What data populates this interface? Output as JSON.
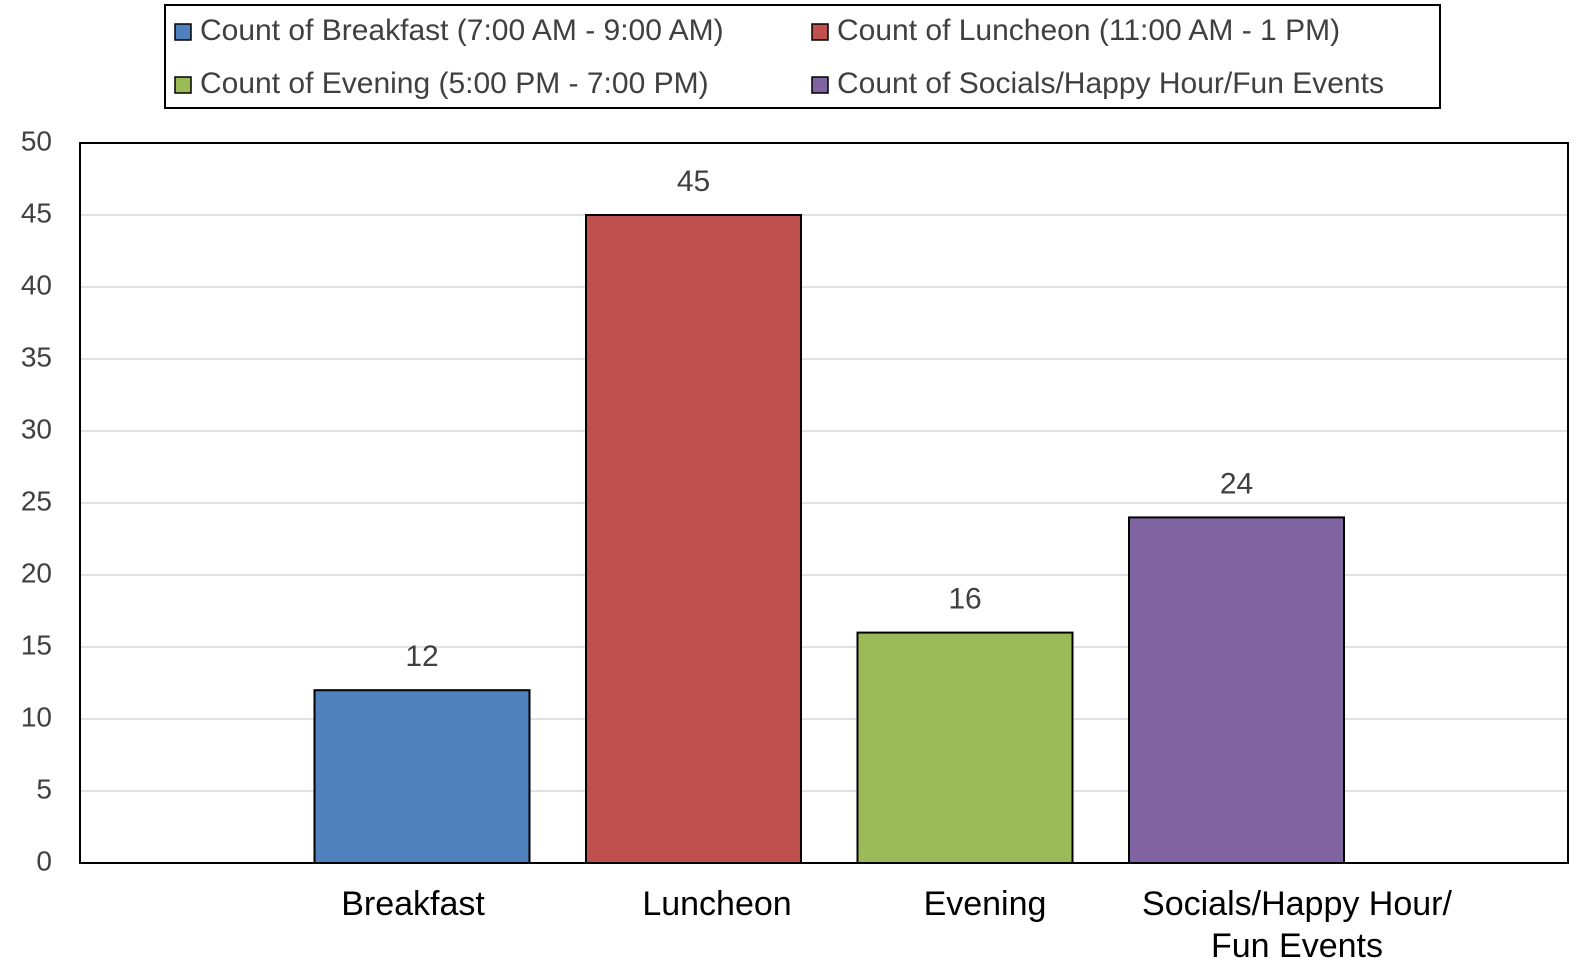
{
  "chart_data": {
    "type": "bar",
    "categories": [
      "Breakfast",
      "Luncheon",
      "Evening",
      "Socials/Happy Hour/ Fun Events"
    ],
    "series": [
      {
        "name": "Count of Breakfast (7:00 AM - 9:00 AM)",
        "color": "#4f81bd",
        "values": [
          12,
          null,
          null,
          null
        ]
      },
      {
        "name": "Count of Luncheon (11:00 AM - 1 PM)",
        "color": "#c0504d",
        "values": [
          null,
          45,
          null,
          null
        ]
      },
      {
        "name": "Count of Evening (5:00 PM - 7:00 PM)",
        "color": "#9bbb59",
        "values": [
          null,
          null,
          16,
          null
        ]
      },
      {
        "name": "Count of Socials/Happy Hour/Fun Events",
        "color": "#8064a2",
        "values": [
          null,
          null,
          null,
          24
        ]
      }
    ],
    "ylim": [
      0,
      50
    ],
    "yticks": [
      0,
      5,
      10,
      15,
      20,
      25,
      30,
      35,
      40,
      45,
      50
    ],
    "grid": true,
    "legend": "top"
  }
}
